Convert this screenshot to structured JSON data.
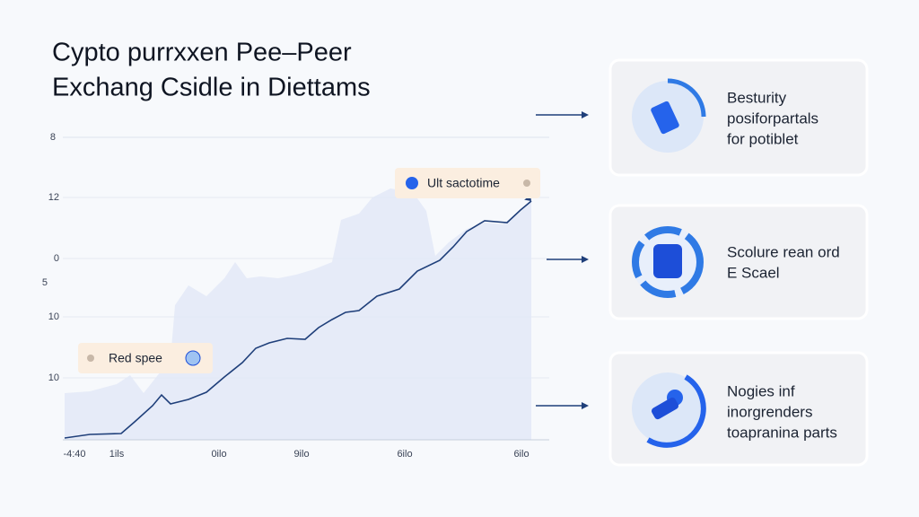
{
  "header": {
    "title_lines": [
      "Cypto purrxxen Pee–Peer",
      "Exchang Csidle in Diettams"
    ]
  },
  "chart": {
    "y_labels": [
      "8",
      "12",
      "0",
      "5",
      "10",
      "10"
    ],
    "x_labels": [
      "-4:40",
      "1ils",
      "0ilo",
      "9ilo",
      "6ilo",
      "6ilo"
    ],
    "callouts": [
      "Ult sactotime",
      "Red spee"
    ]
  },
  "cards": [
    {
      "lines": [
        "Besturity",
        "posiforpartals",
        "for potiblet"
      ]
    },
    {
      "lines": [
        "Scolure rean ord",
        "E Scael"
      ]
    },
    {
      "lines": [
        "Nogies inf",
        "inorgrenders",
        "toapranina parts"
      ]
    }
  ]
}
